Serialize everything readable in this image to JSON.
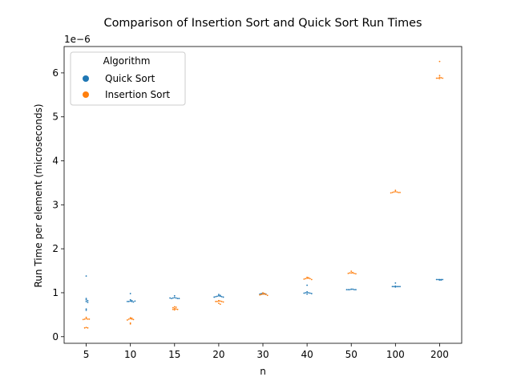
{
  "chart_data": {
    "type": "scatter",
    "title": "Comparison of Insertion Sort and Quick Sort Run Times",
    "xlabel": "n",
    "ylabel": "Run Time per element (microseconds)",
    "y_scale_label": "1e−6",
    "ylim": [
      -0.15,
      6.6
    ],
    "categories": [
      "5",
      "10",
      "15",
      "20",
      "30",
      "40",
      "50",
      "100",
      "200"
    ],
    "yticks": [
      0,
      1,
      2,
      3,
      4,
      5,
      6
    ],
    "grid": false,
    "legend": {
      "title": "Algorithm",
      "position": "top-left"
    },
    "series": [
      {
        "name": "Quick Sort",
        "color": "#1f77b4",
        "values": [
          [
            1.38,
            0.87,
            0.84,
            0.82,
            0.8,
            0.78,
            0.63,
            0.6
          ],
          [
            0.98,
            0.84,
            0.82,
            0.81,
            0.8,
            0.8,
            0.79,
            0.8,
            0.81
          ],
          [
            0.93,
            0.89,
            0.88,
            0.88,
            0.87,
            0.87,
            0.87,
            0.88
          ],
          [
            0.96,
            0.94,
            0.93,
            0.92,
            0.92,
            0.91,
            0.91,
            0.9,
            0.9
          ],
          [
            0.98,
            0.98,
            0.97,
            0.97,
            0.97,
            0.97,
            0.97,
            0.98
          ],
          [
            1.17,
            1.02,
            1.01,
            1.0,
            1.0,
            0.99,
            0.99,
            0.98,
            0.97
          ],
          [
            1.08,
            1.08,
            1.07,
            1.07,
            1.07,
            1.07,
            1.07
          ],
          [
            1.22,
            1.15,
            1.14,
            1.14,
            1.14,
            1.13,
            1.14,
            1.14
          ],
          [
            1.3,
            1.3,
            1.3,
            1.3,
            1.29,
            1.29,
            1.3
          ]
        ]
      },
      {
        "name": "Insertion Sort",
        "color": "#ff7f0e",
        "values": [
          [
            0.44,
            0.41,
            0.4,
            0.4,
            0.4,
            0.39,
            0.21,
            0.2,
            0.2
          ],
          [
            0.43,
            0.42,
            0.41,
            0.4,
            0.4,
            0.39,
            0.38,
            0.31,
            0.29
          ],
          [
            0.68,
            0.67,
            0.66,
            0.64,
            0.63,
            0.62,
            0.62,
            0.61
          ],
          [
            0.82,
            0.81,
            0.81,
            0.8,
            0.8,
            0.8,
            0.79,
            0.76,
            0.74
          ],
          [
            1.0,
            0.98,
            0.97,
            0.97,
            0.96,
            0.96,
            0.95,
            0.94
          ],
          [
            1.35,
            1.34,
            1.33,
            1.33,
            1.32,
            1.32,
            1.31,
            1.3
          ],
          [
            1.49,
            1.46,
            1.45,
            1.45,
            1.45,
            1.44,
            1.44,
            1.43
          ],
          [
            3.33,
            3.3,
            3.29,
            3.29,
            3.28,
            3.28,
            3.28,
            3.27
          ],
          [
            6.26,
            5.94,
            5.9,
            5.89,
            5.88,
            5.88,
            5.88,
            5.87
          ]
        ]
      }
    ]
  }
}
